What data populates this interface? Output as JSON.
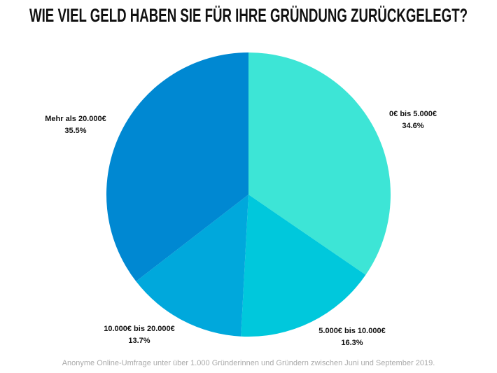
{
  "chart_data": {
    "type": "pie",
    "title": "WIE VIEL GELD HABEN SIE FÜR IHRE GRÜNDUNG ZURÜCKGELEGT?",
    "categories": [
      "0€ bis 5.000€",
      "5.000€ bis 10.000€",
      "10.000€ bis 20.000€",
      "Mehr als 20.000€"
    ],
    "values": [
      34.6,
      16.3,
      13.7,
      35.5
    ],
    "value_labels": [
      "34.6%",
      "16.3%",
      "13.7%",
      "35.5%"
    ],
    "colors": [
      "#3de5d6",
      "#00c8dc",
      "#00a8dc",
      "#0088d2"
    ],
    "footnote": "Anonyme Online-Umfrage unter über 1.000 Gründerinnen und Gründern zwischen Juni und September 2019."
  }
}
